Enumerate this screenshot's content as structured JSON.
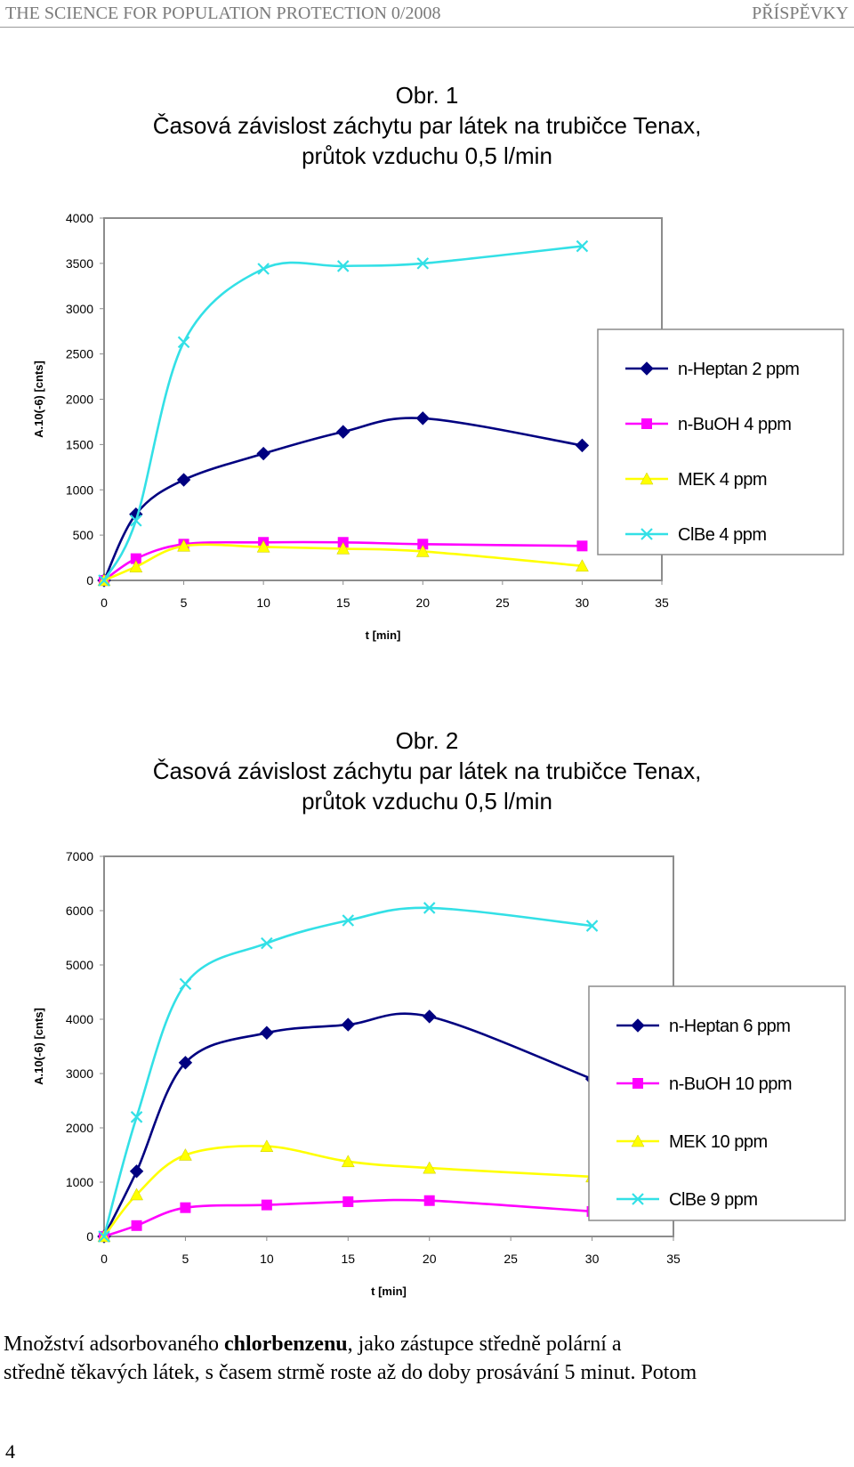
{
  "header": {
    "journal": "THE SCIENCE FOR POPULATION PROTECTION 0/2008",
    "section": "PŘÍSPĚVKY"
  },
  "charts": [
    {
      "title_lines": [
        "Obr. 1",
        "Časová závislost záchytu par látek na trubičce Tenax,",
        "průtok vzduchu 0,5 l/min"
      ]
    },
    {
      "title_lines": [
        "Obr. 2",
        "Časová závislost záchytu par látek na trubičce Tenax,",
        "průtok vzduchu 0,5 l/min"
      ]
    }
  ],
  "chart_data": [
    {
      "type": "line",
      "title": "Obr. 1 Časová závislost záchytu par látek na trubičce Tenax, průtok vzduchu 0,5 l/min",
      "xlabel": "t [min]",
      "ylabel": "A.10(-6) [cnts]",
      "xlim": [
        0,
        35
      ],
      "ylim": [
        0,
        4000
      ],
      "xticks": [
        0,
        5,
        10,
        15,
        20,
        25,
        30,
        35
      ],
      "yticks": [
        0,
        500,
        1000,
        1500,
        2000,
        2500,
        3000,
        3500,
        4000
      ],
      "grid": false,
      "legend_position": "right",
      "series": [
        {
          "name": "n-Heptan 2 ppm",
          "color": "#000080",
          "marker": "diamond",
          "x": [
            0,
            2,
            5,
            10,
            15,
            20,
            30
          ],
          "y": [
            0,
            730,
            1110,
            1400,
            1640,
            1790,
            1490
          ]
        },
        {
          "name": "n-BuOH 4 ppm",
          "color": "#ff00ff",
          "marker": "square",
          "x": [
            0,
            2,
            5,
            10,
            15,
            20,
            30
          ],
          "y": [
            0,
            240,
            400,
            420,
            420,
            400,
            380
          ]
        },
        {
          "name": "MEK 4 ppm",
          "color": "#ffff00",
          "marker": "triangle",
          "x": [
            0,
            2,
            5,
            10,
            15,
            20,
            30
          ],
          "y": [
            0,
            150,
            380,
            370,
            350,
            320,
            160
          ]
        },
        {
          "name": "ClBe 4 ppm",
          "color": "#33e0e6",
          "marker": "x",
          "x": [
            0,
            2,
            5,
            10,
            15,
            20,
            30
          ],
          "y": [
            0,
            660,
            2630,
            3440,
            3470,
            3500,
            3690
          ]
        }
      ]
    },
    {
      "type": "line",
      "title": "Obr. 2 Časová závislost záchytu par látek na trubičce Tenax, průtok vzduchu 0,5 l/min",
      "xlabel": "t [min]",
      "ylabel": "A.10(-6) [cnts]",
      "xlim": [
        0,
        35
      ],
      "ylim": [
        0,
        7000
      ],
      "xticks": [
        0,
        5,
        10,
        15,
        20,
        25,
        30,
        35
      ],
      "yticks": [
        0,
        1000,
        2000,
        3000,
        4000,
        5000,
        6000,
        7000
      ],
      "grid": false,
      "legend_position": "right",
      "series": [
        {
          "name": "n-Heptan 6 ppm",
          "color": "#000080",
          "marker": "diamond",
          "x": [
            0,
            2,
            5,
            10,
            15,
            20,
            30
          ],
          "y": [
            0,
            1200,
            3200,
            3750,
            3900,
            4050,
            2900
          ]
        },
        {
          "name": "n-BuOH 10 ppm",
          "color": "#ff00ff",
          "marker": "square",
          "x": [
            0,
            2,
            5,
            10,
            15,
            20,
            30
          ],
          "y": [
            0,
            200,
            530,
            580,
            640,
            660,
            460
          ]
        },
        {
          "name": "MEK 10 ppm",
          "color": "#ffff00",
          "marker": "triangle",
          "x": [
            0,
            2,
            5,
            10,
            15,
            20,
            30
          ],
          "y": [
            0,
            770,
            1500,
            1660,
            1380,
            1260,
            1100
          ]
        },
        {
          "name": "ClBe 9 ppm",
          "color": "#33e0e6",
          "marker": "x",
          "x": [
            0,
            2,
            5,
            10,
            15,
            20,
            30
          ],
          "y": [
            0,
            2200,
            4650,
            5400,
            5820,
            6050,
            5720
          ]
        }
      ]
    }
  ],
  "paragraph": {
    "part1": "Množství adsorbovaného ",
    "bold": "chlorbenzenu",
    "part2": ", jako zástupce středně polární a",
    "line2": "středně těkavých látek, s časem strmě roste až do doby prosávání 5 minut. Potom"
  },
  "page_number": "4"
}
